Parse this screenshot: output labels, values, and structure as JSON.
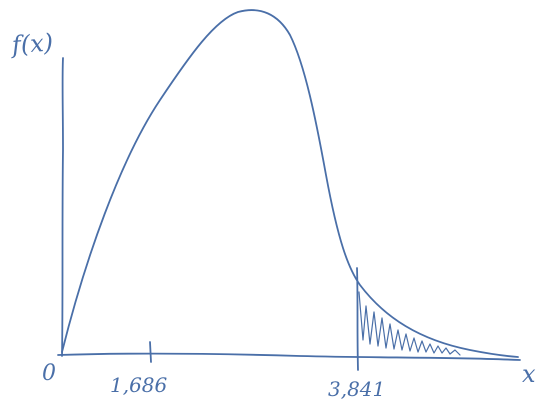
{
  "diagram": {
    "y_axis_label": "f(x)",
    "x_axis_label": "x",
    "origin_label": "0",
    "tick_labels": [
      "1,686",
      "3,841"
    ],
    "ink_color": "#4a6fa8",
    "shaded_region": "right tail beyond 3,841"
  }
}
